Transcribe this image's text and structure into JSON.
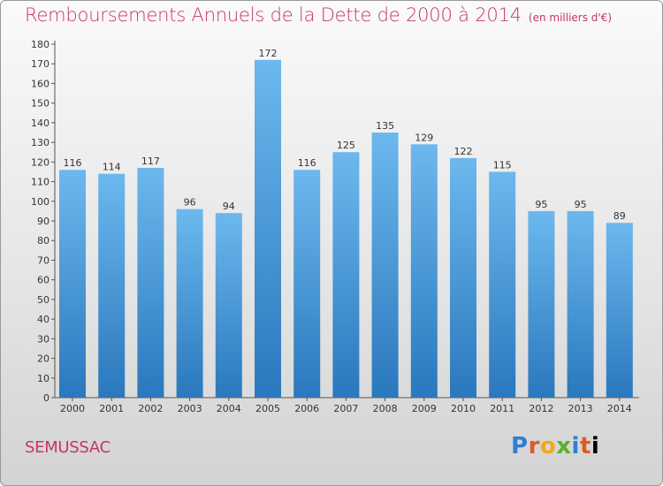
{
  "title": "Remboursements Annuels de la Dette de 2000 à 2014",
  "unit": "(en milliers d'€)",
  "commune": "SEMUSSAC",
  "logo": {
    "letters": [
      "P",
      "r",
      "o",
      "x",
      "i",
      "t",
      "i"
    ]
  },
  "colors": {
    "bar_top": "#6cb8ee",
    "bar_bottom": "#2a78bd",
    "title": "#c8346a"
  },
  "chart_data": {
    "type": "bar",
    "categories": [
      "2000",
      "2001",
      "2002",
      "2003",
      "2004",
      "2005",
      "2006",
      "2007",
      "2008",
      "2009",
      "2010",
      "2011",
      "2012",
      "2013",
      "2014"
    ],
    "values": [
      116,
      114,
      117,
      96,
      94,
      172,
      116,
      125,
      135,
      129,
      122,
      115,
      95,
      95,
      89
    ],
    "title": "Remboursements Annuels de la Dette de 2000 à 2014",
    "xlabel": "",
    "ylabel": "",
    "ylim": [
      0,
      180
    ],
    "yticks": [
      0,
      10,
      20,
      30,
      40,
      50,
      60,
      70,
      80,
      90,
      100,
      110,
      120,
      130,
      140,
      150,
      160,
      170,
      180
    ],
    "grid": false,
    "data_labels": true
  }
}
